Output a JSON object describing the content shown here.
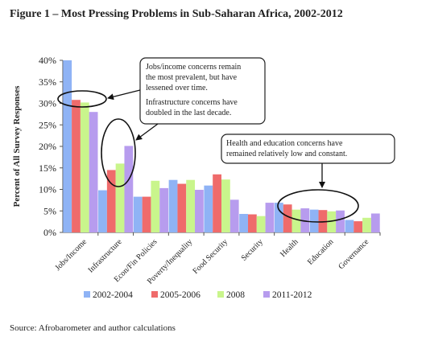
{
  "figure": {
    "title": "Figure 1 – Most Pressing Problems in Sub-Saharan Africa, 2002-2012",
    "source": "Source: Afrobarometer and author calculations"
  },
  "chart_data": {
    "type": "bar",
    "title": "Figure 1 – Most Pressing Problems in Sub-Saharan Africa, 2002-2012",
    "xlabel": "",
    "ylabel": "Percent of All Survey Responses",
    "ylim": [
      0,
      40
    ],
    "y_ticks": [
      "0%",
      "5%",
      "10%",
      "15%",
      "20%",
      "25%",
      "30%",
      "35%",
      "40%"
    ],
    "grid": false,
    "legend_position": "bottom",
    "categories": [
      "Jobs/Income",
      "Infrastructure",
      "Econ/Fin Policies",
      "Poverty/Inequality",
      "Food Security",
      "Security",
      "Health",
      "Education",
      "Governance"
    ],
    "series": [
      {
        "name": "2002-2004",
        "color": "#8fb3f5",
        "values": [
          40.0,
          9.8,
          8.3,
          12.2,
          10.9,
          4.3,
          6.9,
          5.3,
          2.9
        ]
      },
      {
        "name": "2005-2006",
        "color": "#ef6b6b",
        "values": [
          30.8,
          14.5,
          8.3,
          11.3,
          13.5,
          4.2,
          6.5,
          5.2,
          2.6
        ]
      },
      {
        "name": "2008",
        "color": "#c9f58c",
        "values": [
          30.2,
          16.0,
          12.0,
          12.2,
          12.3,
          3.8,
          5.3,
          4.9,
          3.4
        ]
      },
      {
        "name": "2011-2012",
        "color": "#b79cee",
        "values": [
          28.0,
          20.1,
          10.3,
          9.9,
          7.6,
          6.9,
          5.6,
          5.1,
          4.4
        ]
      }
    ],
    "annotations": [
      "Jobs/income concerns remain the most prevalent, but have lessened over time.",
      "Infrastructure concerns have doubled in the last decade.",
      "Health and education concerns have remained relatively low and constant."
    ]
  }
}
